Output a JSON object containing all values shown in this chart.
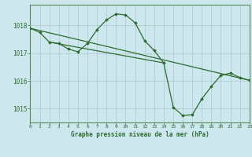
{
  "title": "Graphe pression niveau de la mer (hPa)",
  "background_color": "#cce8ee",
  "grid_color": "#b0c8cc",
  "line_color": "#2d6a2d",
  "x_min": 0,
  "x_max": 23,
  "y_min": 1014.5,
  "y_max": 1018.75,
  "yticks": [
    1015,
    1016,
    1017,
    1018
  ],
  "xticks": [
    0,
    1,
    2,
    3,
    4,
    5,
    6,
    7,
    8,
    9,
    10,
    11,
    12,
    13,
    14,
    15,
    16,
    17,
    18,
    19,
    20,
    21,
    22,
    23
  ],
  "series1": {
    "x": [
      0,
      1,
      2,
      3,
      4,
      5,
      6,
      7,
      8,
      9,
      10,
      11,
      12,
      13,
      14,
      15,
      16,
      17,
      18,
      19,
      20,
      21,
      22,
      23
    ],
    "y": [
      1017.9,
      1017.75,
      1017.4,
      1017.35,
      1017.15,
      1017.05,
      1017.35,
      1017.85,
      1018.2,
      1018.42,
      1018.38,
      1018.1,
      1017.45,
      1017.1,
      1016.65,
      1015.05,
      1014.75,
      1014.78,
      1015.35,
      1015.8,
      1016.2,
      1016.28,
      1016.12,
      1016.02
    ]
  },
  "series2": {
    "x": [
      0,
      23
    ],
    "y": [
      1017.9,
      1016.02
    ]
  },
  "series3": {
    "x": [
      2,
      14
    ],
    "y": [
      1017.4,
      1016.65
    ]
  }
}
